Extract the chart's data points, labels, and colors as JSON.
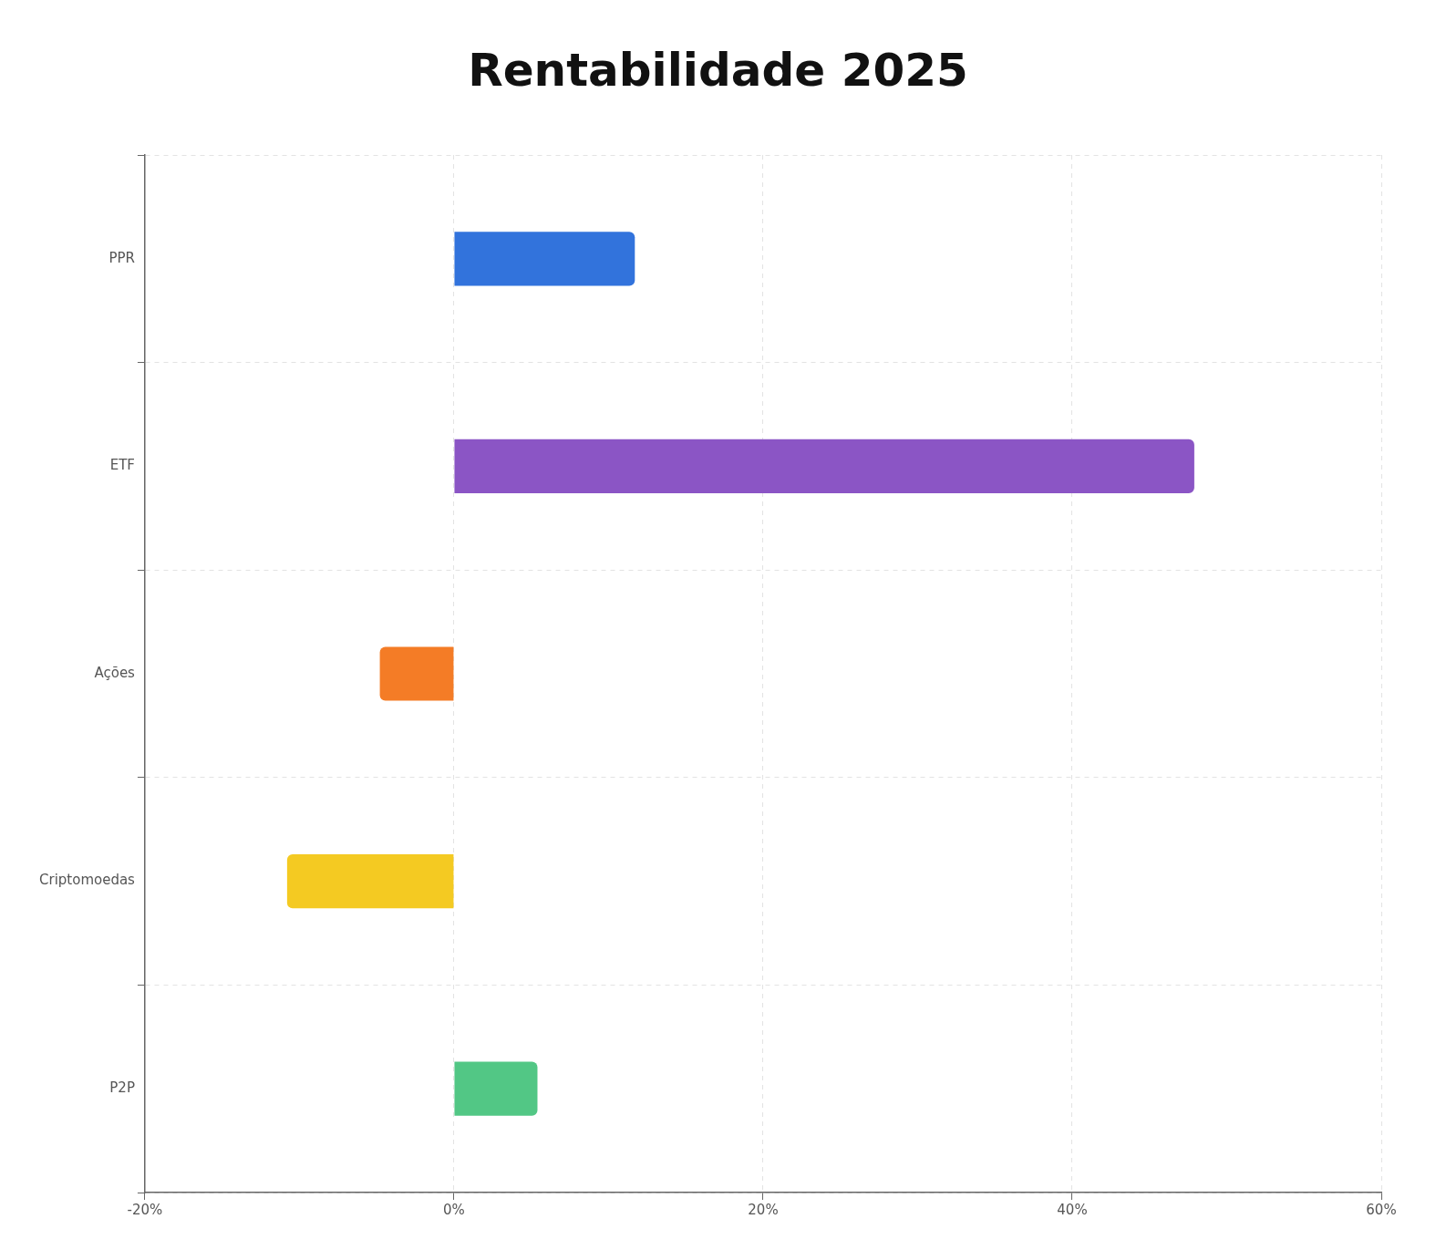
{
  "chart_data": {
    "type": "bar",
    "title": "Rentabilidade 2025",
    "orientation": "horizontal",
    "categories": [
      "PPR",
      "ETF",
      "Ações",
      "Criptomoedas",
      "P2P"
    ],
    "values": [
      11.7,
      47.9,
      -4.8,
      -10.8,
      5.4
    ],
    "colors": [
      "#3273dc",
      "#8b55c5",
      "#f47c26",
      "#f4ca22",
      "#52c785"
    ],
    "xlim": [
      -20,
      60
    ],
    "xticks": [
      {
        "value": -20,
        "label": "-20%"
      },
      {
        "value": 0,
        "label": "0%"
      },
      {
        "value": 20,
        "label": "20%"
      },
      {
        "value": 40,
        "label": "40%"
      },
      {
        "value": 60,
        "label": "60%"
      }
    ],
    "grid": true,
    "legend": false
  }
}
